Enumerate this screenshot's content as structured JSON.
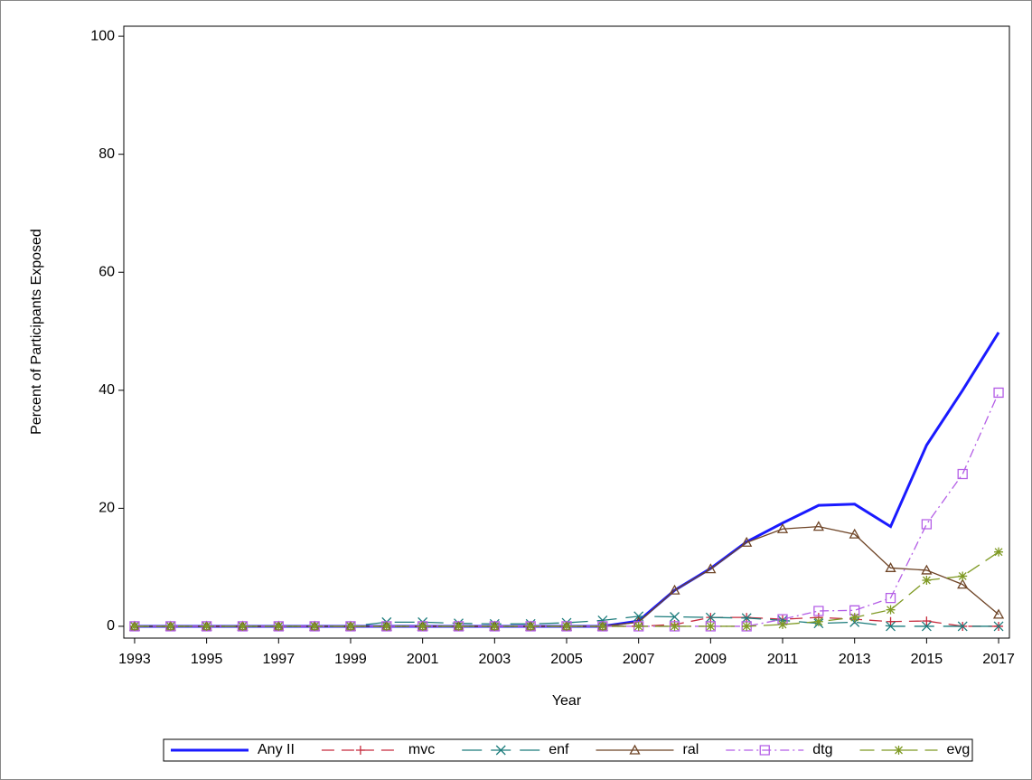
{
  "chart_data": {
    "type": "line",
    "xlabel": "Year",
    "ylabel": "Percent of Participants Exposed",
    "x": [
      1993,
      1994,
      1995,
      1996,
      1997,
      1998,
      1999,
      2000,
      2001,
      2002,
      2003,
      2004,
      2005,
      2006,
      2007,
      2008,
      2009,
      2010,
      2011,
      2012,
      2013,
      2014,
      2015,
      2016,
      2017
    ],
    "xlim": [
      1992.7,
      2017.3
    ],
    "xticks": [
      1993,
      1995,
      1997,
      1999,
      2001,
      2003,
      2005,
      2007,
      2009,
      2011,
      2013,
      2015,
      2017
    ],
    "ylim": [
      -2,
      101.7
    ],
    "yticks": [
      0,
      20,
      40,
      60,
      80,
      100
    ],
    "series": [
      {
        "name": "Any II",
        "color": "#1a1aff",
        "marker": "none",
        "dash": "none",
        "width": 3,
        "values": [
          0,
          0,
          0,
          0,
          0,
          0,
          0,
          0,
          0,
          0,
          0,
          0,
          0,
          0,
          0.9,
          6.1,
          9.8,
          14.3,
          17.5,
          20.5,
          20.7,
          16.9,
          30.7,
          40,
          49.8
        ]
      },
      {
        "name": "mvc",
        "color": "#c62b3d",
        "marker": "plus",
        "dash": "14,8",
        "width": 1.3,
        "values": [
          0,
          0,
          0,
          0,
          0,
          0,
          0,
          0,
          0,
          0,
          0,
          0,
          0,
          0,
          0,
          0.3,
          1.5,
          1.5,
          1.2,
          1.5,
          1.2,
          0.8,
          0.9,
          0,
          0
        ]
      },
      {
        "name": "enf",
        "color": "#1c7c7c",
        "marker": "x",
        "dash": "22,10",
        "width": 1.3,
        "values": [
          0,
          0,
          0,
          0,
          0,
          0,
          0,
          0.7,
          0.7,
          0.5,
          0.4,
          0.4,
          0.6,
          1.0,
          1.7,
          1.6,
          1.5,
          1.4,
          1.0,
          0.5,
          0.7,
          0,
          0,
          0,
          0
        ]
      },
      {
        "name": "ral",
        "color": "#6e4426",
        "marker": "triangle",
        "dash": "none",
        "width": 1.3,
        "values": [
          0,
          0,
          0,
          0,
          0,
          0,
          0,
          0,
          0,
          0,
          0,
          0,
          0,
          0,
          0.7,
          6.1,
          9.7,
          14.2,
          16.5,
          16.9,
          15.6,
          9.9,
          9.5,
          7.1,
          2.0
        ]
      },
      {
        "name": "dtg",
        "color": "#b45ee6",
        "marker": "square",
        "dash": "10,4,2,4",
        "width": 1.3,
        "values": [
          0,
          0,
          0,
          0,
          0,
          0,
          0,
          0,
          0,
          0,
          0,
          0,
          0,
          0,
          0,
          0,
          0,
          0,
          1.2,
          2.6,
          2.7,
          4.8,
          17.3,
          25.8,
          39.6
        ]
      },
      {
        "name": "evg",
        "color": "#7f9a24",
        "marker": "star",
        "dash": "16,8",
        "width": 1.3,
        "values": [
          0,
          0,
          0,
          0,
          0,
          0,
          0,
          0,
          0,
          0,
          0,
          0,
          0,
          0,
          0,
          0,
          0,
          0,
          0.3,
          0.8,
          1.5,
          2.8,
          7.8,
          8.5,
          12.6
        ]
      }
    ]
  }
}
